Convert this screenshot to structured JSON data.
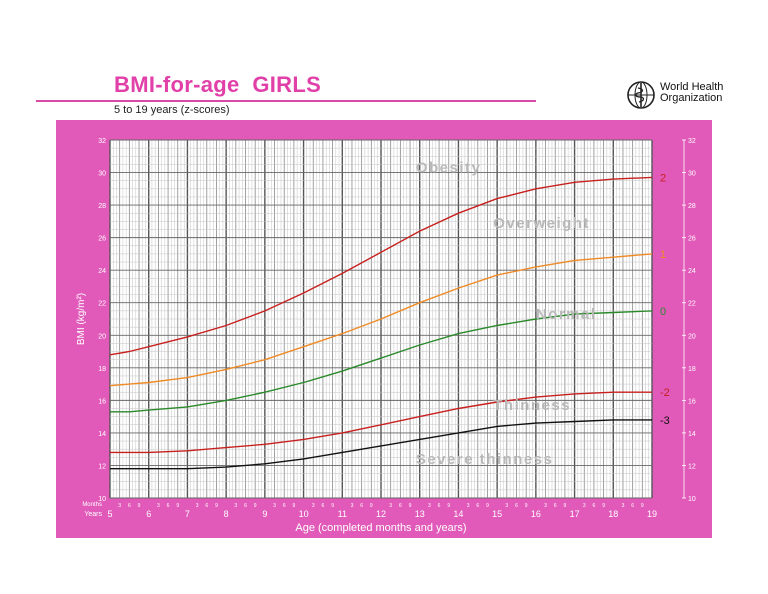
{
  "header": {
    "title": "BMI-for-age  GIRLS",
    "subtitle": "5 to 19 years (z-scores)",
    "org_line1": "World Health",
    "org_line2": "Organization",
    "logo_icon": "who-emblem-icon"
  },
  "colors": {
    "frame": "#e15ab9",
    "accent_title": "#e040a8",
    "z2": "#c8201e",
    "z1": "#f08a24",
    "z0": "#2a8a2a",
    "zm2": "#c8201e",
    "zm3": "#111111",
    "zone_text": "#b9b9b9"
  },
  "chart_data": {
    "type": "line",
    "title": "BMI-for-age  GIRLS",
    "subtitle": "5 to 19 years (z-scores)",
    "xlabel": "Age (completed months and years)",
    "ylabel": "BMI (kg/m²)",
    "xlim": [
      5,
      19
    ],
    "ylim": [
      10,
      32
    ],
    "grid": true,
    "x_ticks": [
      "5",
      "6",
      "7",
      "8",
      "9",
      "10",
      "11",
      "12",
      "13",
      "14",
      "15",
      "16",
      "17",
      "18",
      "19"
    ],
    "y_ticks": [
      "10",
      "12",
      "14",
      "16",
      "18",
      "20",
      "22",
      "24",
      "26",
      "28",
      "30",
      "32"
    ],
    "month_ticks": [
      "3",
      "6",
      "9"
    ],
    "row_label_months": "Months",
    "row_label_years": "Years",
    "zones": [
      {
        "label": "Obesity",
        "x": 12.9,
        "y": 30.0
      },
      {
        "label": "Overweight",
        "x": 14.9,
        "y": 26.6
      },
      {
        "label": "Normal",
        "x": 16.0,
        "y": 21.0
      },
      {
        "label": "Thinness",
        "x": 14.9,
        "y": 15.4
      },
      {
        "label": "Severe thinness",
        "x": 12.9,
        "y": 12.1
      }
    ],
    "x": [
      5,
      5.5,
      6,
      7,
      8,
      9,
      10,
      11,
      12,
      13,
      14,
      15,
      16,
      17,
      18,
      19
    ],
    "series": [
      {
        "name": "2",
        "color_key": "z2",
        "values": [
          18.8,
          19.0,
          19.3,
          19.9,
          20.6,
          21.5,
          22.6,
          23.8,
          25.1,
          26.4,
          27.5,
          28.4,
          29.0,
          29.4,
          29.6,
          29.7
        ]
      },
      {
        "name": "1",
        "color_key": "z1",
        "values": [
          16.9,
          17.0,
          17.1,
          17.4,
          17.9,
          18.5,
          19.3,
          20.1,
          21.0,
          22.0,
          22.9,
          23.7,
          24.2,
          24.6,
          24.8,
          25.0
        ]
      },
      {
        "name": "0",
        "color_key": "z0",
        "values": [
          15.3,
          15.3,
          15.4,
          15.6,
          16.0,
          16.5,
          17.1,
          17.8,
          18.6,
          19.4,
          20.1,
          20.6,
          21.0,
          21.3,
          21.4,
          21.5
        ]
      },
      {
        "name": "-2",
        "color_key": "zm2",
        "values": [
          12.8,
          12.8,
          12.8,
          12.9,
          13.1,
          13.3,
          13.6,
          14.0,
          14.5,
          15.0,
          15.5,
          15.9,
          16.2,
          16.4,
          16.5,
          16.5
        ]
      },
      {
        "name": "-3",
        "color_key": "zm3",
        "values": [
          11.8,
          11.8,
          11.8,
          11.8,
          11.9,
          12.1,
          12.4,
          12.8,
          13.2,
          13.6,
          14.0,
          14.4,
          14.6,
          14.7,
          14.8,
          14.8
        ]
      }
    ]
  }
}
